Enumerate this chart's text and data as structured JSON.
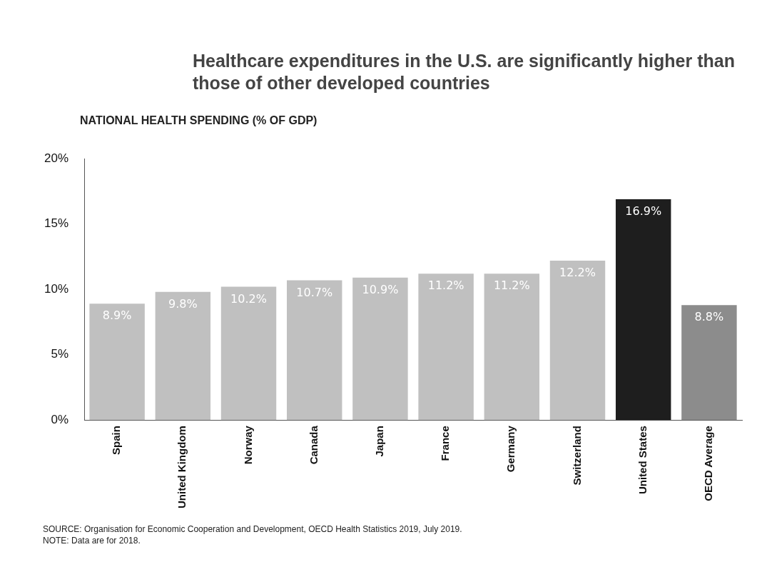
{
  "chart_data": {
    "type": "bar",
    "title": "Healthcare expenditures in the U.S. are significantly higher than those of other developed countries",
    "ylabel": "NATIONAL HEALTH SPENDING (% OF GDP)",
    "categories": [
      "Spain",
      "United Kingdom",
      "Norway",
      "Canada",
      "Japan",
      "France",
      "Germany",
      "Switzerland",
      "United States",
      "OECD Average"
    ],
    "values": [
      8.9,
      9.8,
      10.2,
      10.7,
      10.9,
      11.2,
      11.2,
      12.2,
      16.9,
      8.8
    ],
    "value_labels": [
      "8.9%",
      "9.8%",
      "10.2%",
      "10.7%",
      "10.9%",
      "11.2%",
      "11.2%",
      "12.2%",
      "16.9%",
      "8.8%"
    ],
    "colors": [
      "#c0c0c0",
      "#c0c0c0",
      "#c0c0c0",
      "#c0c0c0",
      "#c0c0c0",
      "#c0c0c0",
      "#c0c0c0",
      "#c0c0c0",
      "#1e1e1e",
      "#8c8c8c"
    ],
    "ylim": [
      0,
      20
    ],
    "yticks": [
      {
        "value": 0,
        "label": "0%"
      },
      {
        "value": 5,
        "label": "5%"
      },
      {
        "value": 10,
        "label": "10%"
      },
      {
        "value": 15,
        "label": "15%"
      },
      {
        "value": 20,
        "label": "20%"
      }
    ],
    "grid": false,
    "legend": false,
    "annotations": [
      "SOURCE: Organisation for Economic Cooperation and Development, OECD Health Statistics 2019, July 2019.",
      "NOTE: Data are for 2018."
    ]
  }
}
